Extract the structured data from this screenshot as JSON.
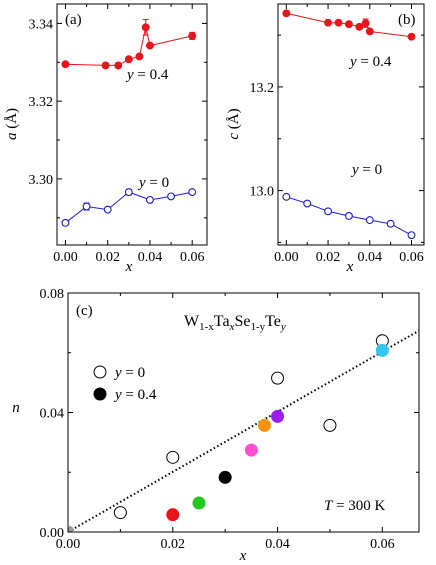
{
  "panels": {
    "a": {
      "label": "(a)",
      "ylabel_italic": "a",
      "ylabel_rest": " (Å)",
      "xlabel": "x",
      "series_labels": {
        "red": "y = 0.4",
        "blue": "y = 0"
      },
      "xticks": [
        "0.00",
        "0.02",
        "0.04",
        "0.06"
      ],
      "yticks": [
        "3.30",
        "3.32",
        "3.34"
      ]
    },
    "b": {
      "label": "(b)",
      "ylabel_italic": "c",
      "ylabel_rest": " (Å)",
      "xlabel": "x",
      "series_labels": {
        "red": "y = 0.4",
        "blue": "y = 0"
      },
      "xticks": [
        "0.00",
        "0.02",
        "0.04",
        "0.06"
      ],
      "yticks": [
        "13.0",
        "13.2"
      ]
    },
    "c": {
      "label": "(c)",
      "formula": {
        "p1": "W",
        "s1": "1-x",
        "p2": "Ta",
        "s2": "x",
        "p3": "Se",
        "s3": "1-y",
        "p4": "Te",
        "s4": "y"
      },
      "temperature_label": "T = 300 K",
      "legend": [
        "y = 0",
        "y = 0.4"
      ],
      "xlabel": "x",
      "ylabel": "n",
      "xticks": [
        "0.00",
        "0.02",
        "0.04",
        "0.06"
      ],
      "yticks": [
        "0.00",
        "0.04",
        "0.08"
      ]
    }
  },
  "colors": {
    "red": "#e8141c",
    "blue": "#1c1cd0",
    "black": "#000000",
    "gray": "#9a9a9a"
  },
  "chart_data": [
    {
      "panel": "a",
      "type": "line",
      "xlabel": "x",
      "ylabel": "a (Å)",
      "xlim": [
        -0.004,
        0.067
      ],
      "ylim": [
        3.283,
        3.345
      ],
      "series": [
        {
          "name": "y = 0.4",
          "marker": "filled-circle",
          "color": "#e8141c",
          "x": [
            0.0,
            0.019,
            0.025,
            0.03,
            0.035,
            0.038,
            0.04,
            0.06
          ],
          "y": [
            3.3295,
            3.3292,
            3.3292,
            3.3308,
            3.3315,
            3.339,
            3.3343,
            3.3368
          ],
          "yerr": [
            0.0006,
            0.0004,
            0.0004,
            0.0005,
            0.0004,
            0.002,
            0.0005,
            0.0009
          ]
        },
        {
          "name": "y = 0",
          "marker": "open-circle",
          "color": "#1c1cd0",
          "x": [
            0.0,
            0.01,
            0.02,
            0.03,
            0.04,
            0.05,
            0.06
          ],
          "y": [
            3.2887,
            3.2929,
            3.2921,
            3.2966,
            3.2946,
            3.2955,
            3.2966
          ],
          "yerr": [
            0.0006,
            0.0009,
            0.0005,
            0.0007,
            0.0004,
            0.0004,
            0.0004
          ]
        }
      ]
    },
    {
      "panel": "b",
      "type": "line",
      "xlabel": "x",
      "ylabel": "c (Å)",
      "xlim": [
        -0.004,
        0.066
      ],
      "ylim": [
        12.895,
        13.36
      ],
      "series": [
        {
          "name": "y = 0.4",
          "marker": "filled-circle",
          "color": "#e8141c",
          "x": [
            0.0,
            0.02,
            0.025,
            0.03,
            0.035,
            0.038,
            0.04,
            0.06
          ],
          "y": [
            13.342,
            13.324,
            13.324,
            13.321,
            13.316,
            13.323,
            13.307,
            13.297
          ],
          "yerr": [
            0.003,
            0.003,
            0.003,
            0.003,
            0.003,
            0.008,
            0.003,
            0.003
          ]
        },
        {
          "name": "y = 0",
          "marker": "open-circle",
          "color": "#1c1cd0",
          "x": [
            0.0,
            0.01,
            0.02,
            0.03,
            0.04,
            0.05,
            0.06
          ],
          "y": [
            12.988,
            12.975,
            12.96,
            12.951,
            12.943,
            12.936,
            12.914
          ],
          "yerr": [
            0.003,
            0.003,
            0.003,
            0.003,
            0.003,
            0.003,
            0.003
          ]
        }
      ]
    },
    {
      "panel": "c",
      "type": "scatter",
      "xlabel": "x",
      "ylabel": "n",
      "xlim": [
        0.0,
        0.067
      ],
      "ylim": [
        0.0,
        0.08
      ],
      "series": [
        {
          "name": "y = 0",
          "marker": "open-circle",
          "x": [
            0.01,
            0.02,
            0.04,
            0.05,
            0.06
          ],
          "y": [
            0.0065,
            0.025,
            0.0515,
            0.0357,
            0.064
          ]
        },
        {
          "name": "y = 0.4",
          "marker": "filled-circle",
          "x": [
            0.02,
            0.025,
            0.03,
            0.035,
            0.0375,
            0.04,
            0.06
          ],
          "y": [
            0.0058,
            0.0097,
            0.0183,
            0.0274,
            0.0357,
            0.0387,
            0.0608
          ],
          "colors": [
            "#e8141c",
            "#21c821",
            "#000000",
            "#ff4fd0",
            "#f7940f",
            "#9b1ff5",
            "#33c6f2"
          ]
        },
        {
          "name": "",
          "marker": "filled-circle",
          "x": [
            0.0
          ],
          "y": [
            0.0
          ],
          "colors": [
            "#9a9a9a"
          ]
        }
      ],
      "fit_line": {
        "style": "dotted",
        "x": [
          0.0,
          0.067
        ],
        "y": [
          0.0,
          0.0674
        ]
      }
    }
  ]
}
